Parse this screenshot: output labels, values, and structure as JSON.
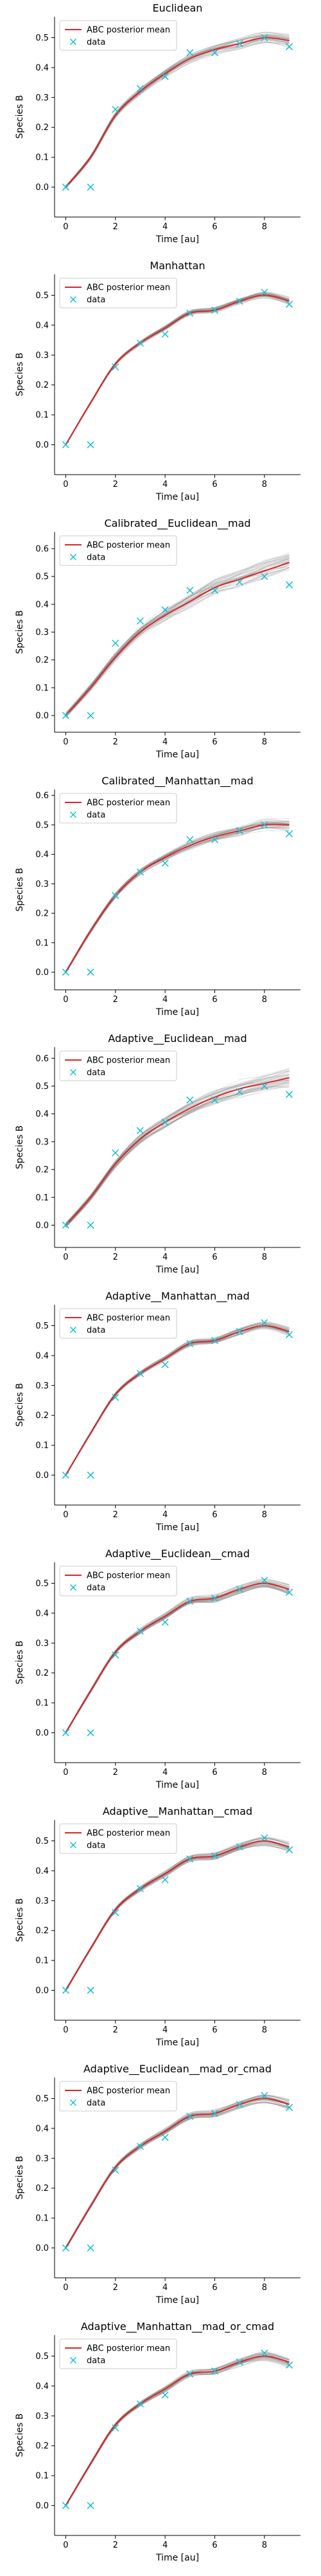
{
  "figure": {
    "background": "#ffffff",
    "colors": {
      "posterior_mean": "#d62728",
      "data": "#17becf",
      "samples": "#808080",
      "axis": "#000000"
    }
  },
  "chart_data": [
    {
      "type": "line",
      "title": "Euclidean",
      "xlabel": "Time [au]",
      "ylabel": "Species B",
      "xlim": [
        -0.45,
        9.45
      ],
      "ylim": [
        -0.1,
        0.57
      ],
      "xticks": [
        0,
        2,
        4,
        6,
        8
      ],
      "yticks": [
        0.0,
        0.1,
        0.2,
        0.3,
        0.4,
        0.5
      ],
      "legend": {
        "position": "top-left",
        "entries": [
          "ABC posterior mean",
          "data"
        ]
      },
      "grid": false,
      "band_halfwidth": 0.02,
      "data": {
        "x": [
          0,
          1,
          2,
          3,
          4,
          5,
          6,
          7,
          8,
          9
        ],
        "y": [
          0.0,
          0.0,
          0.26,
          0.33,
          0.37,
          0.45,
          0.45,
          0.48,
          0.5,
          0.47
        ]
      },
      "series": [
        {
          "name": "ABC posterior mean",
          "x": [
            0,
            1,
            2,
            3,
            4,
            5,
            6,
            7,
            8,
            9
          ],
          "y": [
            0.0,
            0.1,
            0.24,
            0.32,
            0.38,
            0.43,
            0.46,
            0.48,
            0.5,
            0.49
          ]
        }
      ]
    },
    {
      "type": "line",
      "title": "Manhattan",
      "xlabel": "Time [au]",
      "ylabel": "Species B",
      "xlim": [
        -0.45,
        9.45
      ],
      "ylim": [
        -0.1,
        0.57
      ],
      "xticks": [
        0,
        2,
        4,
        6,
        8
      ],
      "yticks": [
        0.0,
        0.1,
        0.2,
        0.3,
        0.4,
        0.5
      ],
      "legend": {
        "position": "top-left",
        "entries": [
          "ABC posterior mean",
          "data"
        ]
      },
      "grid": false,
      "band_halfwidth": 0.012,
      "data": {
        "x": [
          0,
          1,
          2,
          3,
          4,
          5,
          6,
          7,
          8,
          9
        ],
        "y": [
          0.0,
          0.0,
          0.26,
          0.34,
          0.37,
          0.44,
          0.45,
          0.48,
          0.51,
          0.47
        ]
      },
      "series": [
        {
          "name": "ABC posterior mean",
          "x": [
            0,
            1,
            2,
            3,
            4,
            5,
            6,
            7,
            8,
            9
          ],
          "y": [
            0.0,
            0.14,
            0.27,
            0.34,
            0.39,
            0.44,
            0.45,
            0.48,
            0.5,
            0.48
          ]
        }
      ]
    },
    {
      "type": "line",
      "title": "Calibrated__Euclidean__mad",
      "xlabel": "Time [au]",
      "ylabel": "Species B",
      "xlim": [
        -0.45,
        9.45
      ],
      "ylim": [
        -0.06,
        0.66
      ],
      "xticks": [
        0,
        2,
        4,
        6,
        8
      ],
      "yticks": [
        0.0,
        0.1,
        0.2,
        0.3,
        0.4,
        0.5,
        0.6
      ],
      "legend": {
        "position": "top-left",
        "entries": [
          "ABC posterior mean",
          "data"
        ]
      },
      "grid": false,
      "band_halfwidth": 0.035,
      "data": {
        "x": [
          0,
          1,
          2,
          3,
          4,
          5,
          6,
          7,
          8,
          9
        ],
        "y": [
          0.0,
          0.0,
          0.26,
          0.34,
          0.38,
          0.45,
          0.45,
          0.48,
          0.5,
          0.47
        ]
      },
      "series": [
        {
          "name": "ABC posterior mean",
          "x": [
            0,
            1,
            2,
            3,
            4,
            5,
            6,
            7,
            8,
            9
          ],
          "y": [
            0.0,
            0.1,
            0.21,
            0.3,
            0.36,
            0.41,
            0.46,
            0.49,
            0.52,
            0.55
          ]
        }
      ]
    },
    {
      "type": "line",
      "title": "Calibrated__Manhattan__mad",
      "xlabel": "Time [au]",
      "ylabel": "Species B",
      "xlim": [
        -0.45,
        9.45
      ],
      "ylim": [
        -0.06,
        0.62
      ],
      "xticks": [
        0,
        2,
        4,
        6,
        8
      ],
      "yticks": [
        0.0,
        0.1,
        0.2,
        0.3,
        0.4,
        0.5,
        0.6
      ],
      "legend": {
        "position": "top-left",
        "entries": [
          "ABC posterior mean",
          "data"
        ]
      },
      "grid": false,
      "band_halfwidth": 0.018,
      "data": {
        "x": [
          0,
          1,
          2,
          3,
          4,
          5,
          6,
          7,
          8,
          9
        ],
        "y": [
          0.0,
          0.0,
          0.26,
          0.34,
          0.37,
          0.45,
          0.45,
          0.48,
          0.5,
          0.47
        ]
      },
      "series": [
        {
          "name": "ABC posterior mean",
          "x": [
            0,
            1,
            2,
            3,
            4,
            5,
            6,
            7,
            8,
            9
          ],
          "y": [
            0.0,
            0.14,
            0.26,
            0.34,
            0.39,
            0.43,
            0.46,
            0.48,
            0.5,
            0.5
          ]
        }
      ]
    },
    {
      "type": "line",
      "title": "Adaptive__Euclidean__mad",
      "xlabel": "Time [au]",
      "ylabel": "Species B",
      "xlim": [
        -0.45,
        9.45
      ],
      "ylim": [
        -0.08,
        0.64
      ],
      "xticks": [
        0,
        2,
        4,
        6,
        8
      ],
      "yticks": [
        0.0,
        0.1,
        0.2,
        0.3,
        0.4,
        0.5,
        0.6
      ],
      "legend": {
        "position": "top-left",
        "entries": [
          "ABC posterior mean",
          "data"
        ]
      },
      "grid": false,
      "band_halfwidth": 0.03,
      "data": {
        "x": [
          0,
          1,
          2,
          3,
          4,
          5,
          6,
          7,
          8,
          9
        ],
        "y": [
          0.0,
          0.0,
          0.26,
          0.34,
          0.37,
          0.45,
          0.45,
          0.48,
          0.5,
          0.47
        ]
      },
      "series": [
        {
          "name": "ABC posterior mean",
          "x": [
            0,
            1,
            2,
            3,
            4,
            5,
            6,
            7,
            8,
            9
          ],
          "y": [
            0.0,
            0.1,
            0.22,
            0.31,
            0.37,
            0.42,
            0.46,
            0.49,
            0.51,
            0.53
          ]
        }
      ]
    },
    {
      "type": "line",
      "title": "Adaptive__Manhattan__mad",
      "xlabel": "Time [au]",
      "ylabel": "Species B",
      "xlim": [
        -0.45,
        9.45
      ],
      "ylim": [
        -0.1,
        0.57
      ],
      "xticks": [
        0,
        2,
        4,
        6,
        8
      ],
      "yticks": [
        0.0,
        0.1,
        0.2,
        0.3,
        0.4,
        0.5
      ],
      "legend": {
        "position": "top-left",
        "entries": [
          "ABC posterior mean",
          "data"
        ]
      },
      "grid": false,
      "band_halfwidth": 0.012,
      "data": {
        "x": [
          0,
          1,
          2,
          3,
          4,
          5,
          6,
          7,
          8,
          9
        ],
        "y": [
          0.0,
          0.0,
          0.26,
          0.34,
          0.37,
          0.44,
          0.45,
          0.48,
          0.51,
          0.47
        ]
      },
      "series": [
        {
          "name": "ABC posterior mean",
          "x": [
            0,
            1,
            2,
            3,
            4,
            5,
            6,
            7,
            8,
            9
          ],
          "y": [
            0.0,
            0.14,
            0.27,
            0.34,
            0.39,
            0.44,
            0.45,
            0.48,
            0.5,
            0.48
          ]
        }
      ]
    },
    {
      "type": "line",
      "title": "Adaptive__Euclidean__cmad",
      "xlabel": "Time [au]",
      "ylabel": "Species B",
      "xlim": [
        -0.45,
        9.45
      ],
      "ylim": [
        -0.1,
        0.57
      ],
      "xticks": [
        0,
        2,
        4,
        6,
        8
      ],
      "yticks": [
        0.0,
        0.1,
        0.2,
        0.3,
        0.4,
        0.5
      ],
      "legend": {
        "position": "top-left",
        "entries": [
          "ABC posterior mean",
          "data"
        ]
      },
      "grid": false,
      "band_halfwidth": 0.015,
      "data": {
        "x": [
          0,
          1,
          2,
          3,
          4,
          5,
          6,
          7,
          8,
          9
        ],
        "y": [
          0.0,
          0.0,
          0.26,
          0.34,
          0.37,
          0.44,
          0.45,
          0.48,
          0.51,
          0.47
        ]
      },
      "series": [
        {
          "name": "ABC posterior mean",
          "x": [
            0,
            1,
            2,
            3,
            4,
            5,
            6,
            7,
            8,
            9
          ],
          "y": [
            0.0,
            0.14,
            0.27,
            0.34,
            0.39,
            0.44,
            0.45,
            0.48,
            0.5,
            0.48
          ]
        }
      ]
    },
    {
      "type": "line",
      "title": "Adaptive__Manhattan__cmad",
      "xlabel": "Time [au]",
      "ylabel": "Species B",
      "xlim": [
        -0.45,
        9.45
      ],
      "ylim": [
        -0.1,
        0.57
      ],
      "xticks": [
        0,
        2,
        4,
        6,
        8
      ],
      "yticks": [
        0.0,
        0.1,
        0.2,
        0.3,
        0.4,
        0.5
      ],
      "legend": {
        "position": "top-left",
        "entries": [
          "ABC posterior mean",
          "data"
        ]
      },
      "grid": false,
      "band_halfwidth": 0.015,
      "data": {
        "x": [
          0,
          1,
          2,
          3,
          4,
          5,
          6,
          7,
          8,
          9
        ],
        "y": [
          0.0,
          0.0,
          0.26,
          0.34,
          0.37,
          0.44,
          0.45,
          0.48,
          0.51,
          0.47
        ]
      },
      "series": [
        {
          "name": "ABC posterior mean",
          "x": [
            0,
            1,
            2,
            3,
            4,
            5,
            6,
            7,
            8,
            9
          ],
          "y": [
            0.0,
            0.14,
            0.27,
            0.34,
            0.39,
            0.44,
            0.45,
            0.48,
            0.5,
            0.48
          ]
        }
      ]
    },
    {
      "type": "line",
      "title": "Adaptive__Euclidean__mad_or_cmad",
      "xlabel": "Time [au]",
      "ylabel": "Species B",
      "xlim": [
        -0.45,
        9.45
      ],
      "ylim": [
        -0.1,
        0.57
      ],
      "xticks": [
        0,
        2,
        4,
        6,
        8
      ],
      "yticks": [
        0.0,
        0.1,
        0.2,
        0.3,
        0.4,
        0.5
      ],
      "legend": {
        "position": "top-left",
        "entries": [
          "ABC posterior mean",
          "data"
        ]
      },
      "grid": false,
      "band_halfwidth": 0.015,
      "data": {
        "x": [
          0,
          1,
          2,
          3,
          4,
          5,
          6,
          7,
          8,
          9
        ],
        "y": [
          0.0,
          0.0,
          0.26,
          0.34,
          0.37,
          0.44,
          0.45,
          0.48,
          0.51,
          0.47
        ]
      },
      "series": [
        {
          "name": "ABC posterior mean",
          "x": [
            0,
            1,
            2,
            3,
            4,
            5,
            6,
            7,
            8,
            9
          ],
          "y": [
            0.0,
            0.14,
            0.27,
            0.34,
            0.39,
            0.44,
            0.45,
            0.48,
            0.5,
            0.48
          ]
        }
      ]
    },
    {
      "type": "line",
      "title": "Adaptive__Manhattan__mad_or_cmad",
      "xlabel": "Time [au]",
      "ylabel": "Species B",
      "xlim": [
        -0.45,
        9.45
      ],
      "ylim": [
        -0.1,
        0.57
      ],
      "xticks": [
        0,
        2,
        4,
        6,
        8
      ],
      "yticks": [
        0.0,
        0.1,
        0.2,
        0.3,
        0.4,
        0.5
      ],
      "legend": {
        "position": "top-left",
        "entries": [
          "ABC posterior mean",
          "data"
        ]
      },
      "grid": false,
      "band_halfwidth": 0.015,
      "data": {
        "x": [
          0,
          1,
          2,
          3,
          4,
          5,
          6,
          7,
          8,
          9
        ],
        "y": [
          0.0,
          0.0,
          0.26,
          0.34,
          0.37,
          0.44,
          0.45,
          0.48,
          0.51,
          0.47
        ]
      },
      "series": [
        {
          "name": "ABC posterior mean",
          "x": [
            0,
            1,
            2,
            3,
            4,
            5,
            6,
            7,
            8,
            9
          ],
          "y": [
            0.0,
            0.14,
            0.27,
            0.34,
            0.39,
            0.44,
            0.45,
            0.48,
            0.5,
            0.48
          ]
        }
      ]
    }
  ]
}
